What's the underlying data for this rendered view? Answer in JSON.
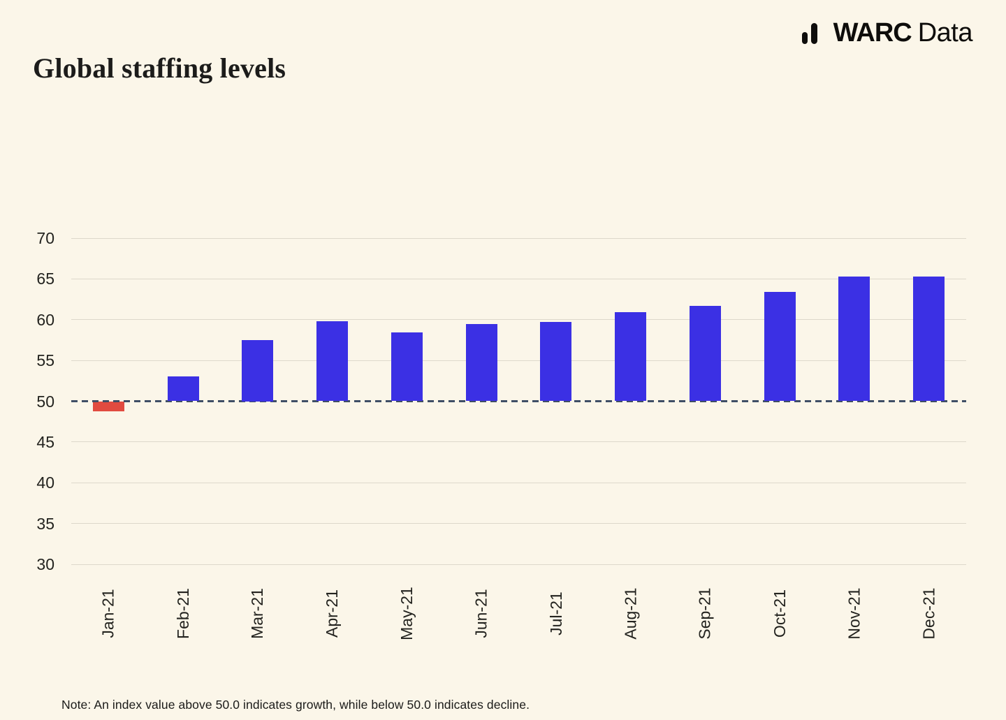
{
  "page": {
    "background": "#FBF6E9"
  },
  "header": {
    "title": "Global staffing levels",
    "brand": {
      "bold": "WARC",
      "regular": "Data",
      "icon": "bar-chart-icon"
    }
  },
  "chart_data": {
    "type": "bar",
    "title": "Global staffing levels",
    "categories": [
      "Jan-21",
      "Feb-21",
      "Mar-21",
      "Apr-21",
      "May-21",
      "Jun-21",
      "Jul-21",
      "Aug-21",
      "Sep-21",
      "Oct-21",
      "Nov-21",
      "Dec-21"
    ],
    "values": [
      48.8,
      53.0,
      57.5,
      59.8,
      58.4,
      59.5,
      59.7,
      60.9,
      61.7,
      63.4,
      65.3,
      65.3
    ],
    "baseline": 50,
    "ylim": [
      30,
      70
    ],
    "yticks": [
      30,
      35,
      40,
      45,
      50,
      55,
      60,
      65,
      70
    ],
    "grid": true,
    "legend": "none",
    "baseline_style": "dashed",
    "colors": {
      "positive_bar": "#3B30E4",
      "negative_bar": "#E14B40",
      "baseline_line": "#3F4E66",
      "gridline": "#DDD8CB",
      "text": "#1C1C1B"
    }
  },
  "note": {
    "text": "Note: An index value above 50.0 indicates growth, while below 50.0 indicates decline."
  }
}
